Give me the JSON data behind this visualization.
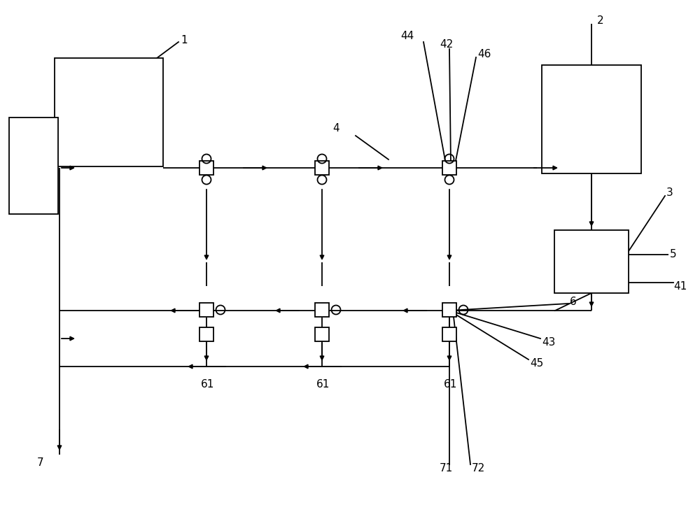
{
  "bg_color": "#ffffff",
  "line_color": "#000000",
  "fig_width": 10.0,
  "fig_height": 7.22,
  "dpi": 100
}
